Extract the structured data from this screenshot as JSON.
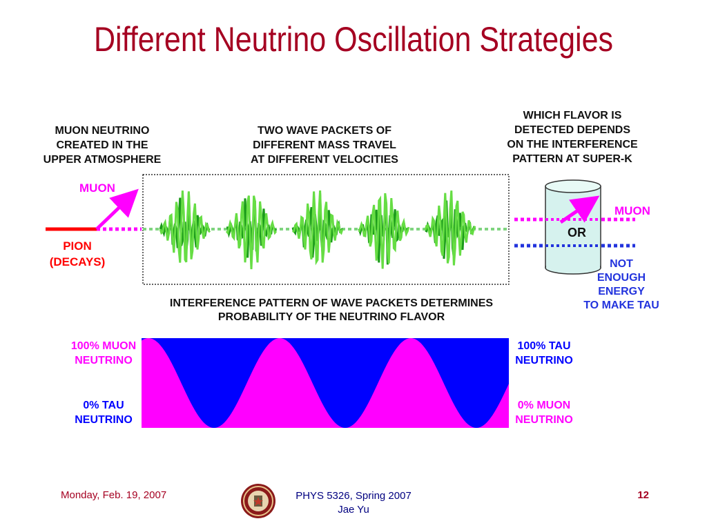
{
  "slide": {
    "title": "Different Neutrino Oscillation Strategies"
  },
  "figure": {
    "left_caption": [
      "MUON NEUTRINO",
      "CREATED IN THE",
      "UPPER ATMOSPHERE"
    ],
    "middle_caption": [
      "TWO WAVE PACKETS OF",
      "DIFFERENT MASS TRAVEL",
      "AT DIFFERENT VELOCITIES"
    ],
    "right_caption": [
      "WHICH FLAVOR IS",
      "DETECTED DEPENDS",
      "ON THE INTERFERENCE",
      "PATTERN AT SUPER-K"
    ],
    "muon_label": "MUON",
    "pion_label": [
      "PION",
      "(DECAYS)"
    ],
    "detector_or": "OR",
    "detected_muon_label": "MUON",
    "no_tau_label": [
      "NOT",
      "ENOUGH",
      "ENERGY",
      "TO MAKE TAU"
    ],
    "interference_caption": [
      "INTERFERENCE PATTERN OF WAVE PACKETS DETERMINES",
      "PROBABILITY OF THE NEUTRINO FLAVOR"
    ],
    "band_left_top": [
      "100% MUON",
      "NEUTRINO"
    ],
    "band_left_bottom": [
      "0% TAU",
      "NEUTRINO"
    ],
    "band_right_top": [
      "100% TAU",
      "NEUTRINO"
    ],
    "band_right_bottom": [
      "0% MUON",
      "NEUTRINO"
    ],
    "wave_packet_count": 5,
    "colors": {
      "title": "#a50021",
      "muon": "#ff00ff",
      "pion": "#ff0000",
      "tau": "#0000ff",
      "packet_light": "#66dd44",
      "packet_dark": "#1a9a1a",
      "detector": "#d6f2ee"
    }
  },
  "footer": {
    "date": "Monday, Feb. 19, 2007",
    "course": "PHYS 5326, Spring 2007",
    "author": "Jae Yu",
    "page": "12",
    "logo_icon": "university-seal-icon"
  }
}
